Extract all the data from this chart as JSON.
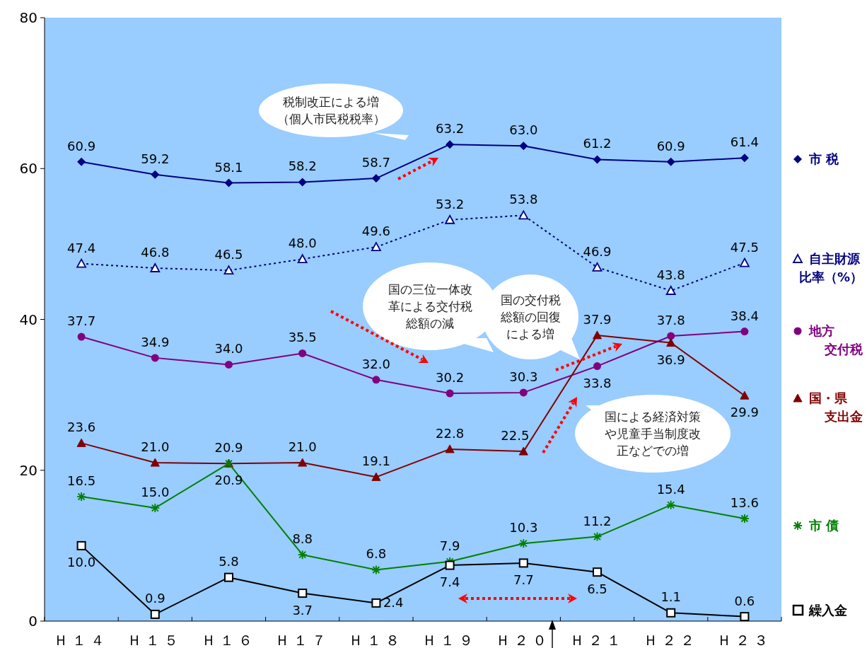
{
  "chart_data": {
    "type": "line",
    "categories": [
      "Ｈ１４",
      "Ｈ１５",
      "Ｈ１６",
      "Ｈ１７",
      "Ｈ１８",
      "Ｈ１９",
      "Ｈ２０",
      "Ｈ２１",
      "Ｈ２２",
      "Ｈ２３"
    ],
    "series": [
      {
        "name": "市 税",
        "color": "#000080",
        "marker": "diamond",
        "values": [
          60.9,
          59.2,
          58.1,
          58.2,
          58.7,
          63.2,
          63.0,
          61.2,
          60.9,
          61.4
        ],
        "value_labels": [
          "60.9",
          "59.2",
          "58.1",
          "58.2",
          "58.7",
          "63.2",
          "63.0",
          "61.2",
          "60.9",
          "61.4"
        ]
      },
      {
        "name": "自主財源比率（%）",
        "color": "#000080",
        "marker": "triangle",
        "line_style": "dotted",
        "values": [
          47.4,
          46.8,
          46.5,
          48.0,
          49.6,
          53.2,
          53.8,
          46.9,
          43.8,
          47.5
        ],
        "value_labels": [
          "47.4",
          "46.8",
          "46.5",
          "48.0",
          "49.6",
          "53.2",
          "53.8",
          "46.9",
          "43.8",
          "47.5"
        ]
      },
      {
        "name": "地方交付税",
        "color": "#800080",
        "marker": "circle",
        "values": [
          37.7,
          34.9,
          34.0,
          35.5,
          32.0,
          30.2,
          30.3,
          33.8,
          37.8,
          38.4
        ],
        "value_labels": [
          "37.7",
          "34.9",
          "34.0",
          "35.5",
          "32.0",
          "30.2",
          "30.3",
          "33.8",
          "37.8",
          "38.4"
        ]
      },
      {
        "name": "国・県支出金",
        "color": "#800000",
        "marker": "triangle",
        "values": [
          23.6,
          21.0,
          20.9,
          21.0,
          19.1,
          22.8,
          22.5,
          37.9,
          36.9,
          29.9
        ],
        "value_labels": [
          "23.6",
          "21.0",
          "20.9",
          "21.0",
          "19.1",
          "22.8",
          "22.5",
          "37.9",
          "36.9",
          "29.9"
        ]
      },
      {
        "name": "市 債",
        "color": "#008000",
        "marker": "cross",
        "values": [
          16.5,
          15.0,
          20.9,
          8.8,
          6.8,
          7.9,
          10.3,
          11.2,
          15.4,
          13.6
        ],
        "value_labels": [
          "16.5",
          "15.0",
          "20.9",
          "8.8",
          "6.8",
          "7.9",
          "10.3",
          "11.2",
          "15.4",
          "13.6"
        ]
      },
      {
        "name": "繰入金",
        "color": "#000000",
        "marker": "square",
        "values": [
          10.0,
          0.9,
          5.8,
          3.7,
          2.4,
          7.4,
          7.7,
          6.5,
          1.1,
          0.6
        ],
        "value_labels": [
          "10.0",
          "0.9",
          "5.8",
          "3.7",
          "2.4",
          "7.4",
          "7.7",
          "6.5",
          "1.1",
          "0.6"
        ]
      }
    ],
    "ylim": [
      0,
      80
    ],
    "yticks": [
      0,
      20,
      40,
      60,
      80
    ],
    "grid": false,
    "legend": "right",
    "annotations": [
      "税制改正による増（個人市民税税率）",
      "国の三位一体改革による交付税総額の減",
      "国の交付税総額の回復による増",
      "国による経済対策や児童手当制度改正などでの増"
    ]
  }
}
